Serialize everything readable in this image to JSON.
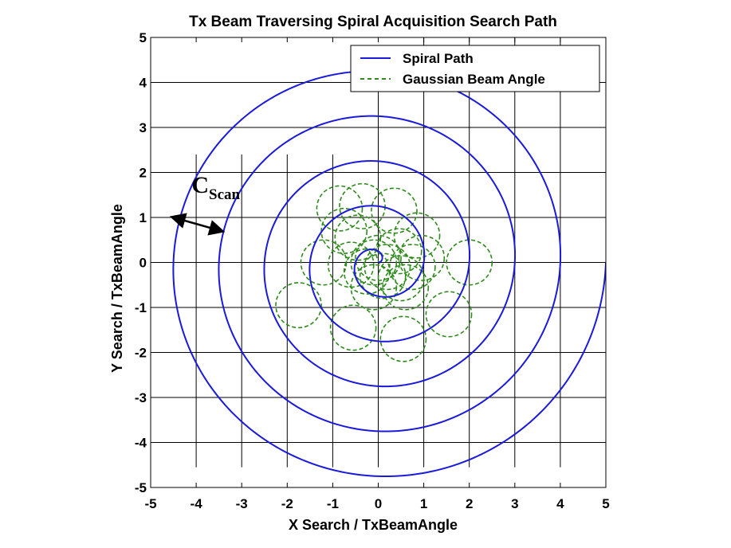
{
  "chart_data": {
    "type": "line",
    "title": "Tx Beam Traversing Spiral Acquisition Search Path",
    "xlabel": "X Search / TxBeamAngle",
    "ylabel": "Y Search / TxBeamAngle",
    "xlim": [
      -5,
      5
    ],
    "ylim": [
      -5,
      5
    ],
    "xticks": [
      -5,
      -4,
      -3,
      -2,
      -1,
      0,
      1,
      2,
      3,
      4,
      5
    ],
    "yticks": [
      -5,
      -4,
      -3,
      -2,
      -1,
      0,
      1,
      2,
      3,
      4,
      5
    ],
    "xtick_labels": [
      "-5",
      "-4",
      "-3",
      "-2",
      "-1",
      "0",
      "1",
      "2",
      "3",
      "4",
      "5"
    ],
    "ytick_labels": [
      "-5",
      "-4",
      "-3",
      "-2",
      "-1",
      "0",
      "1",
      "2",
      "3",
      "4",
      "5"
    ],
    "grid": "partial",
    "legend_position": "top-right",
    "series": [
      {
        "name": "Spiral Path",
        "style": "solid",
        "color": "#1a1adc",
        "spiral": {
          "start_radius": 0.0,
          "growth_per_turn": 1.0,
          "turns": 5.0
        }
      },
      {
        "name": "Gaussian Beam Angle",
        "style": "dashed",
        "color": "#2f8a1c",
        "circle_radius": 0.5,
        "centers": [
          [
            -0.1,
            0.0
          ],
          [
            0.0,
            0.1
          ],
          [
            0.2,
            -0.1
          ],
          [
            0.1,
            -0.3
          ],
          [
            -0.25,
            -0.2
          ],
          [
            0.5,
            -0.35
          ],
          [
            0.75,
            -0.1
          ],
          [
            0.95,
            0.1
          ],
          [
            0.45,
            0.25
          ],
          [
            -0.6,
            -0.05
          ],
          [
            -0.45,
            0.55
          ],
          [
            -0.75,
            0.7
          ],
          [
            -1.2,
            0.0
          ],
          [
            -0.85,
            1.2
          ],
          [
            -0.35,
            1.25
          ],
          [
            0.35,
            1.15
          ],
          [
            0.85,
            0.6
          ],
          [
            0.6,
            -0.55
          ],
          [
            -0.1,
            -0.55
          ],
          [
            -1.75,
            -0.95
          ],
          [
            -0.55,
            -1.45
          ],
          [
            0.55,
            -1.7
          ],
          [
            1.55,
            -1.15
          ],
          [
            2.0,
            0.0
          ]
        ]
      }
    ],
    "annotations": [
      {
        "text_main": "C",
        "text_sub": "Scan",
        "x": -4.1,
        "y": 1.55,
        "arrow_from": [
          -4.5,
          1.0
        ],
        "arrow_to": [
          -3.45,
          0.7
        ]
      }
    ]
  }
}
